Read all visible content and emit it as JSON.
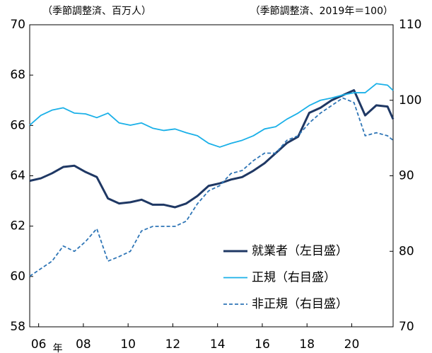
{
  "chart_data": {
    "type": "line",
    "y_label": "（季節調整済、百万人）",
    "y2_label": "（季節調整済、2019年＝100）",
    "x_unit": "年",
    "x": [
      2005.6,
      2006.1,
      2006.6,
      2007.1,
      2007.6,
      2008.1,
      2008.6,
      2009.1,
      2009.6,
      2010.1,
      2010.6,
      2011.1,
      2011.6,
      2012.1,
      2012.6,
      2013.1,
      2013.6,
      2014.1,
      2014.6,
      2015.1,
      2015.6,
      2016.1,
      2016.6,
      2017.1,
      2017.6,
      2018.1,
      2018.6,
      2019.1,
      2019.6,
      2020.1,
      2020.6,
      2021.1,
      2021.6,
      2021.85
    ],
    "series": [
      {
        "name": "就業者（左目盛）",
        "color": "#1f3864",
        "axis": "y",
        "dash": false,
        "values": [
          63.8,
          63.9,
          64.1,
          64.35,
          64.4,
          64.15,
          63.95,
          63.1,
          62.9,
          62.95,
          63.05,
          62.85,
          62.85,
          62.75,
          62.9,
          63.2,
          63.6,
          63.7,
          63.85,
          63.95,
          64.2,
          64.5,
          64.9,
          65.3,
          65.55,
          66.5,
          66.7,
          67.0,
          67.2,
          67.4,
          66.4,
          66.8,
          66.75,
          66.25
        ]
      },
      {
        "name": "正規（右目盛）",
        "color": "#1ab0e8",
        "axis": "y2",
        "dash": false,
        "values": [
          96.7,
          98.0,
          98.7,
          99.0,
          98.3,
          98.2,
          97.7,
          98.3,
          97.0,
          96.7,
          97.0,
          96.3,
          96.0,
          96.2,
          95.7,
          95.3,
          94.3,
          93.8,
          94.3,
          94.7,
          95.3,
          96.2,
          96.5,
          97.5,
          98.3,
          99.3,
          100.0,
          100.3,
          100.7,
          101.0,
          101.0,
          102.2,
          102.0,
          101.3
        ]
      },
      {
        "name": "非正規（右目盛）",
        "color": "#2e75b6",
        "axis": "y2",
        "dash": true,
        "values": [
          76.7,
          77.7,
          78.7,
          80.7,
          80.0,
          81.3,
          83.0,
          78.7,
          79.3,
          80.0,
          82.7,
          83.3,
          83.3,
          83.3,
          84.0,
          86.3,
          88.0,
          88.7,
          90.3,
          90.7,
          92.0,
          93.0,
          93.0,
          94.7,
          95.3,
          97.0,
          98.3,
          99.3,
          100.3,
          99.7,
          95.3,
          95.7,
          95.3,
          94.7
        ]
      }
    ],
    "xlim": [
      2005.6,
      2021.85
    ],
    "xticks": [
      {
        "value": 2006,
        "label": "06"
      },
      {
        "value": 2008,
        "label": "08"
      },
      {
        "value": 2010,
        "label": "10"
      },
      {
        "value": 2012,
        "label": "12"
      },
      {
        "value": 2014,
        "label": "14"
      },
      {
        "value": 2016,
        "label": "16"
      },
      {
        "value": 2018,
        "label": "18"
      },
      {
        "value": 2020,
        "label": "20"
      }
    ],
    "ylim": [
      58,
      70
    ],
    "yticks": [
      58,
      60,
      62,
      64,
      66,
      68,
      70
    ],
    "y2lim": [
      70,
      110
    ],
    "y2ticks": [
      70,
      80,
      90,
      100,
      110
    ],
    "legend": "lower right"
  }
}
